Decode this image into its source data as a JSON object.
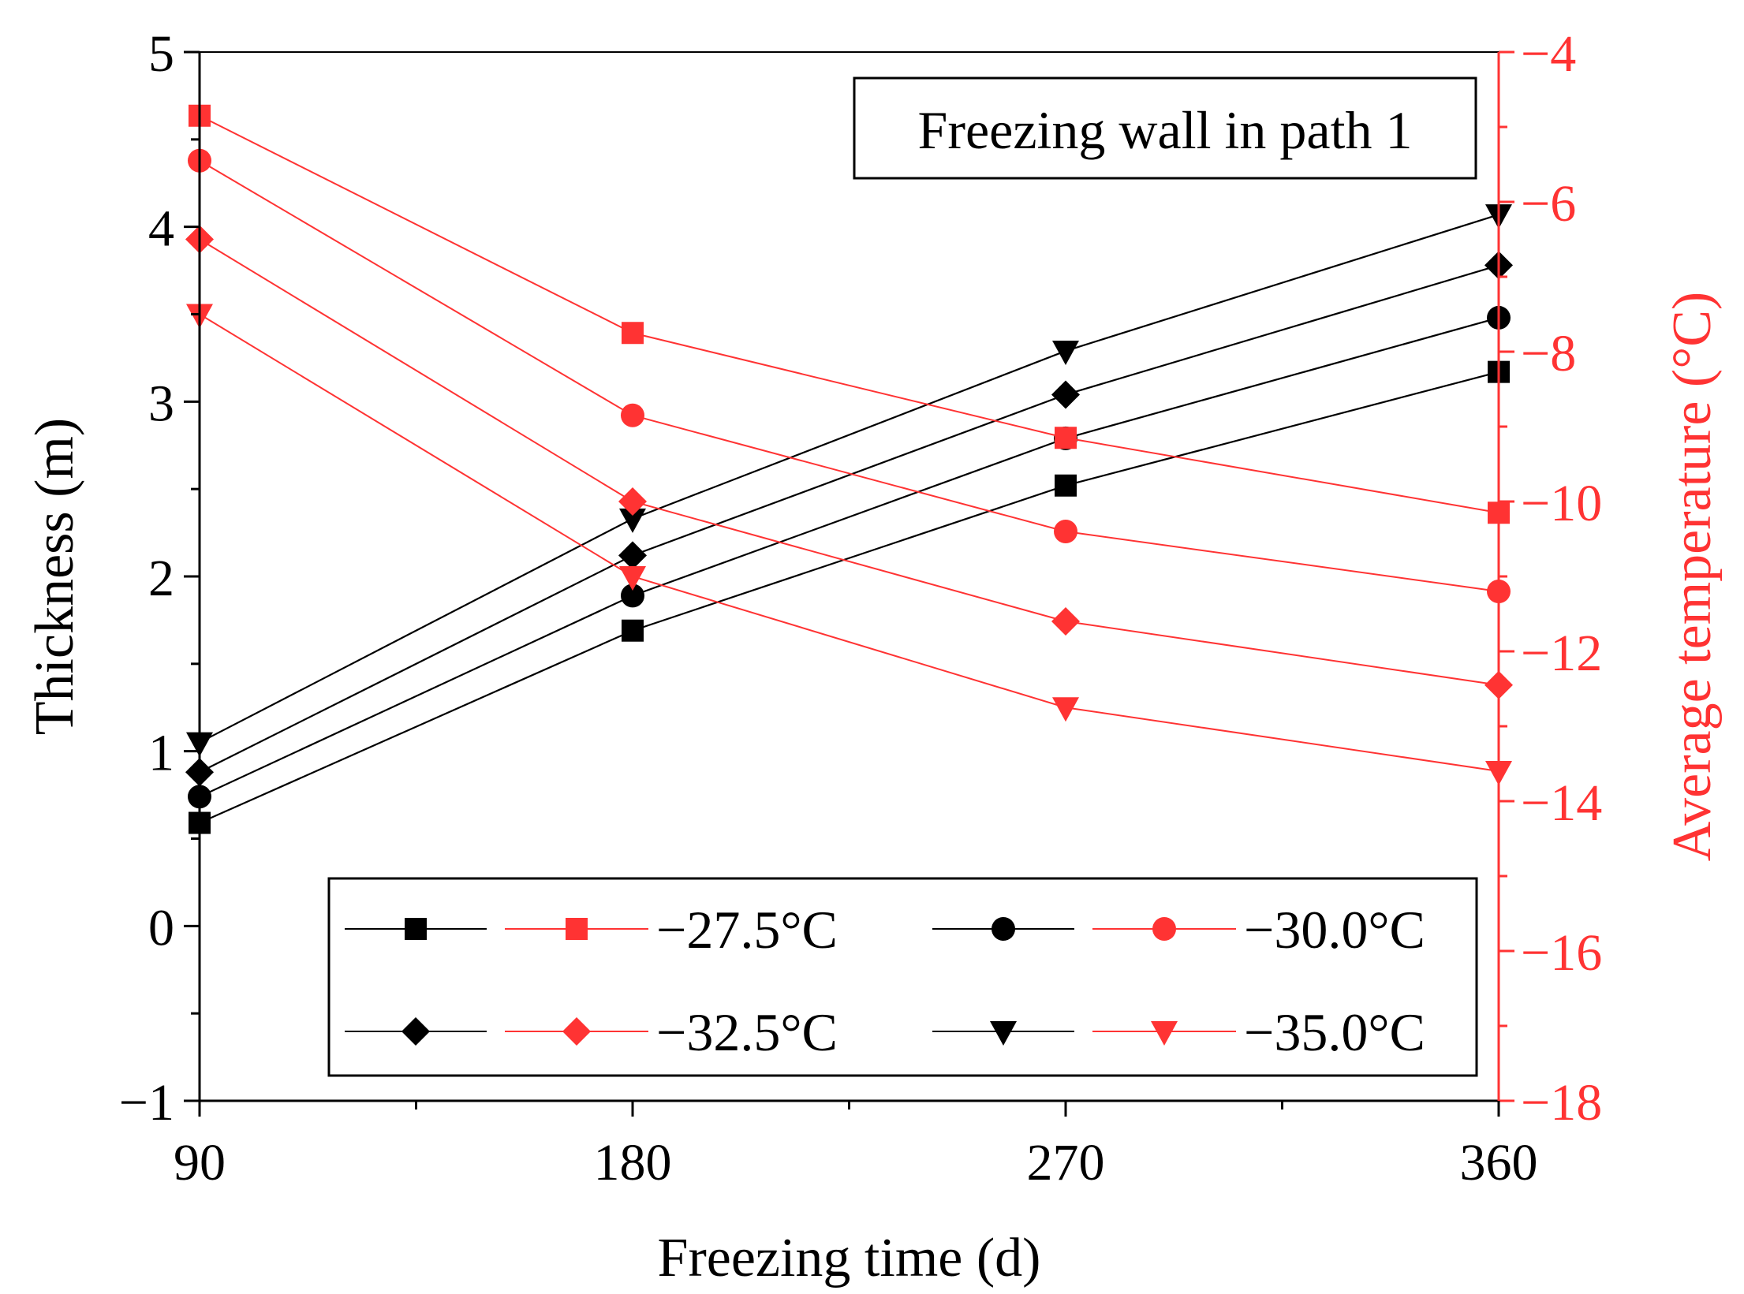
{
  "chart_data": {
    "type": "line",
    "annotation": "Freezing wall in path 1",
    "x": [
      90,
      180,
      270,
      360
    ],
    "xlabel": "Freezing time (d)",
    "xlim": [
      90,
      360
    ],
    "x_ticks": [
      90,
      180,
      270,
      360
    ],
    "x_tick_labels": [
      "90",
      "180",
      "270",
      "360"
    ],
    "ylabel": "Thickness (m)",
    "ylim": [
      -1,
      5
    ],
    "y_ticks": [
      -1,
      0,
      1,
      2,
      3,
      4,
      5
    ],
    "y_tick_labels": [
      "−1",
      "0",
      "1",
      "2",
      "3",
      "4",
      "5"
    ],
    "y2label": "Average temperature (°C)",
    "y2lim": [
      -18,
      -4
    ],
    "y2_ticks": [
      -18,
      -16,
      -14,
      -12,
      -10,
      -8,
      -6,
      -4
    ],
    "y2_tick_labels": [
      "−18",
      "−16",
      "−14",
      "−12",
      "−10",
      "−8",
      "−6",
      "−4"
    ],
    "legend_position": "bottom",
    "thickness_color": "#000000",
    "temperature_color": "#ff3333",
    "series": [
      {
        "name": "−27.5°C",
        "axis": "thickness",
        "marker": "square",
        "values": [
          0.59,
          1.69,
          2.52,
          3.17
        ]
      },
      {
        "name": "−30.0°C",
        "axis": "thickness",
        "marker": "circle",
        "values": [
          0.74,
          1.89,
          2.79,
          3.48
        ]
      },
      {
        "name": "−32.5°C",
        "axis": "thickness",
        "marker": "diamond",
        "values": [
          0.88,
          2.12,
          3.04,
          3.78
        ]
      },
      {
        "name": "−35.0°C",
        "axis": "thickness",
        "marker": "triangle-down",
        "values": [
          1.05,
          2.33,
          3.29,
          4.07
        ]
      },
      {
        "name": "−27.5°C",
        "axis": "temperature",
        "marker": "square",
        "values": [
          -4.85,
          -7.75,
          -9.15,
          -10.15
        ]
      },
      {
        "name": "−30.0°C",
        "axis": "temperature",
        "marker": "circle",
        "values": [
          -5.45,
          -8.85,
          -10.4,
          -11.2
        ]
      },
      {
        "name": "−32.5°C",
        "axis": "temperature",
        "marker": "diamond",
        "values": [
          -6.5,
          -10.0,
          -11.6,
          -12.45
        ]
      },
      {
        "name": "−35.0°C",
        "axis": "temperature",
        "marker": "triangle-down",
        "values": [
          -7.5,
          -11.0,
          -12.75,
          -13.6
        ]
      }
    ]
  }
}
